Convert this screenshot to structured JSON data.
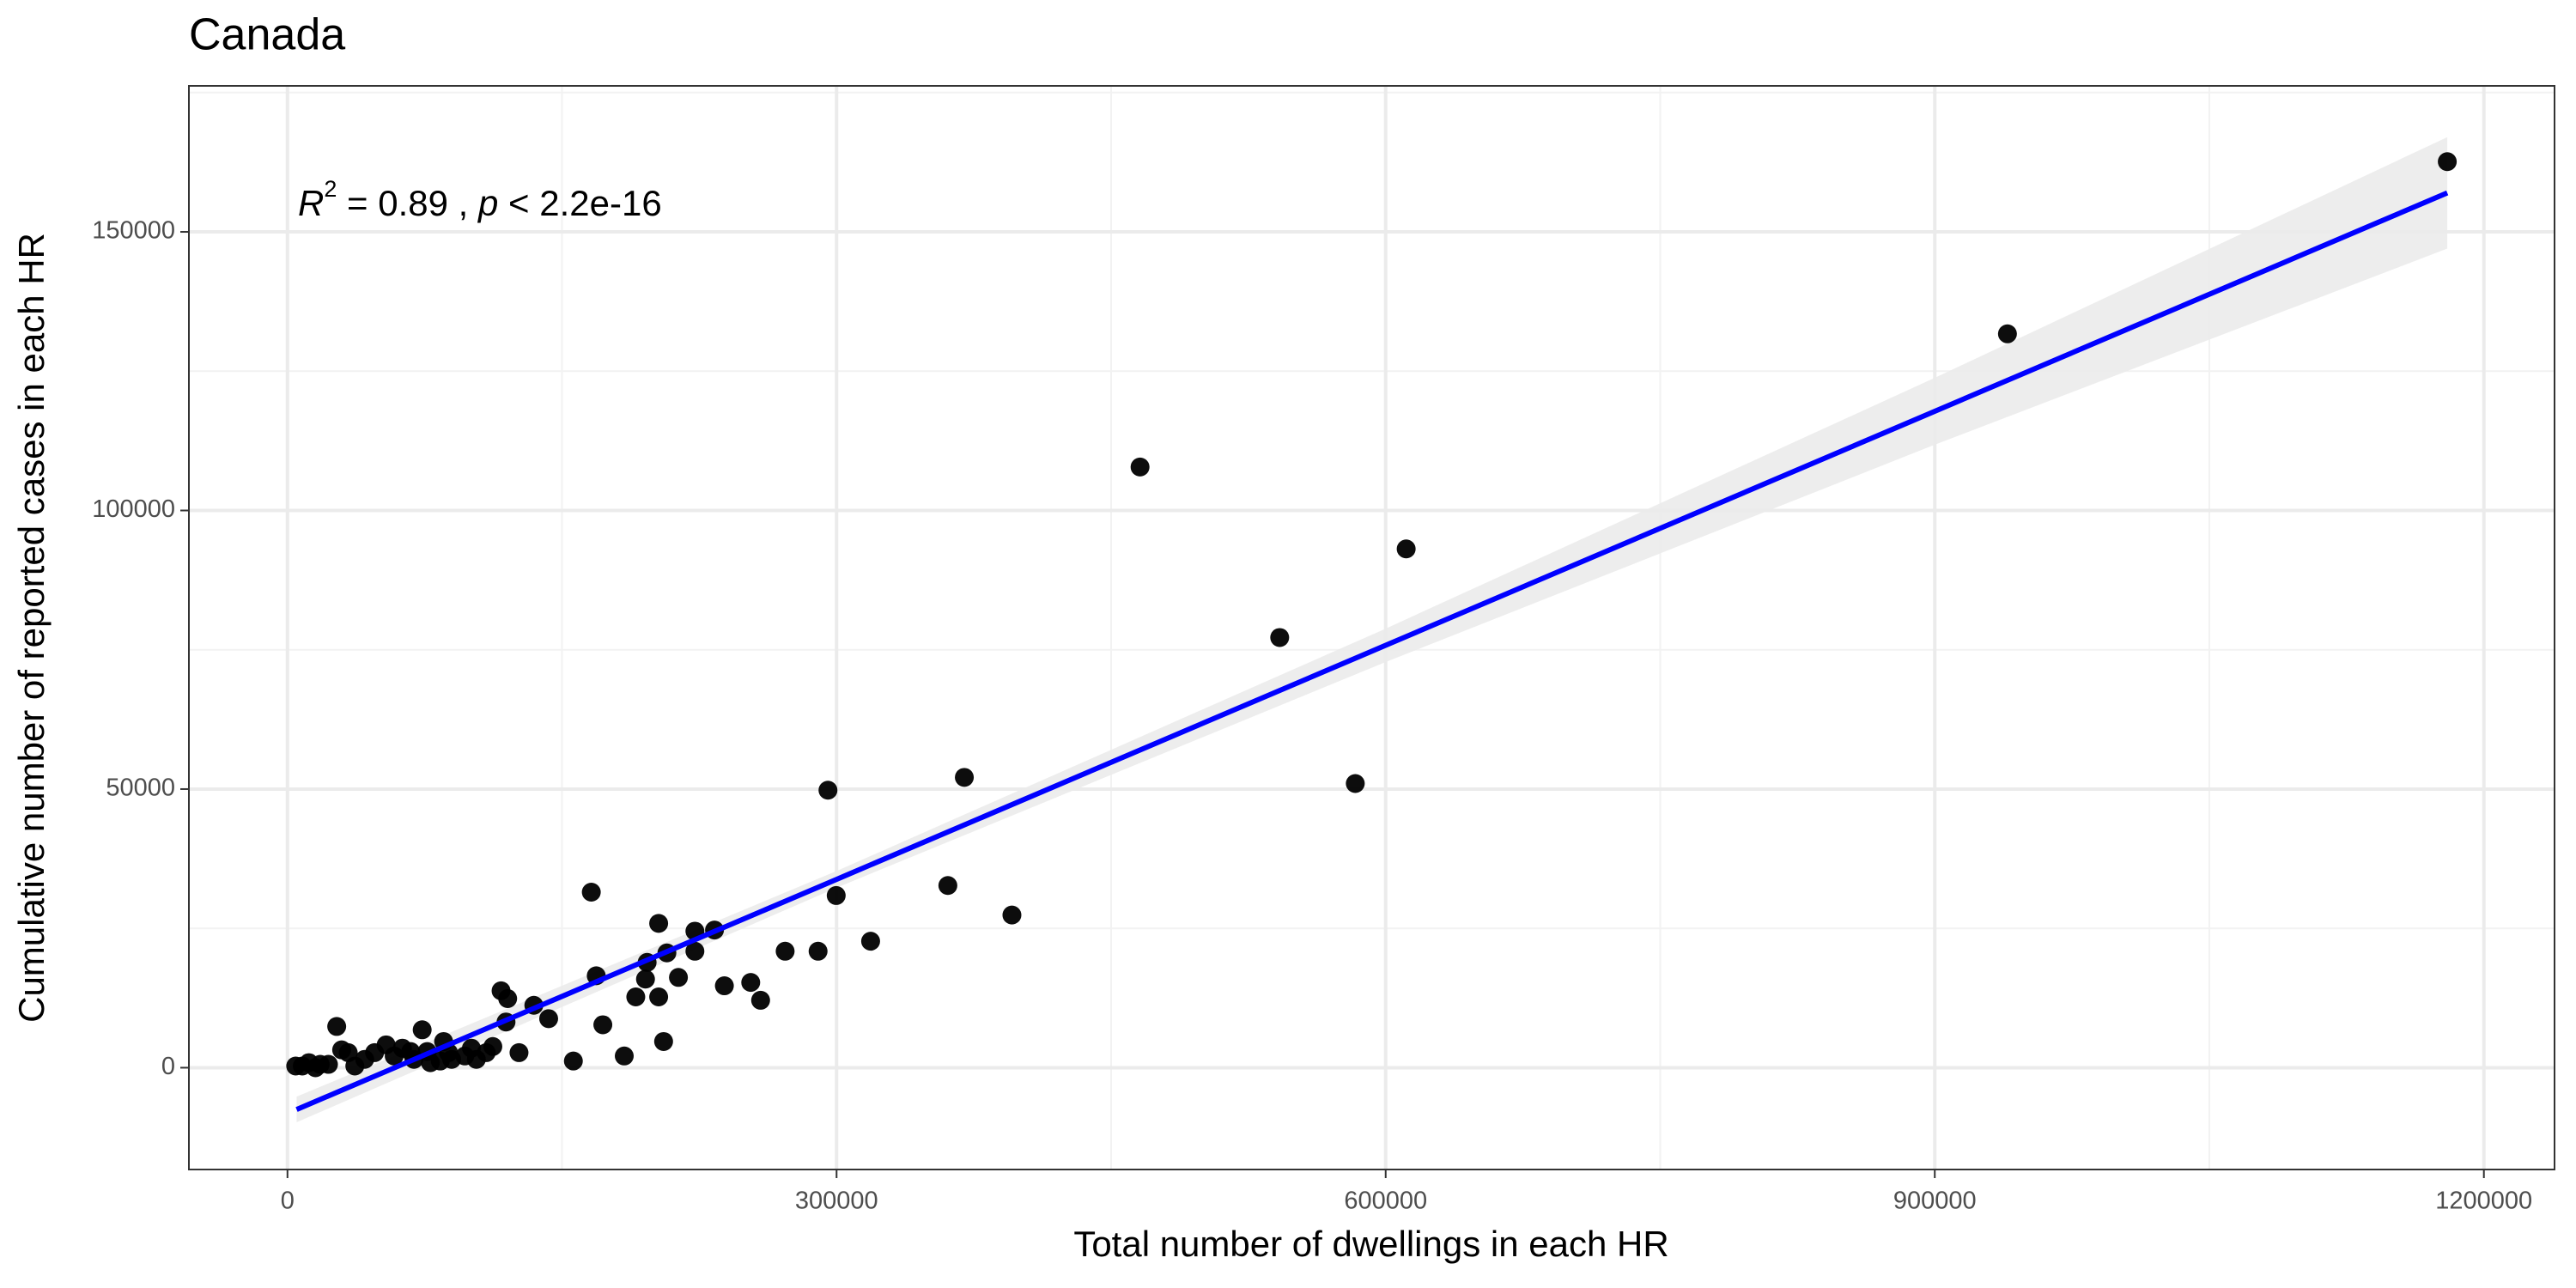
{
  "chart_data": {
    "type": "scatter",
    "title": "Canada",
    "x_label": "Total number of dwellings in each HR",
    "y_label": "Cumulative number of reported cases in each HR",
    "annotation": [
      "R",
      "2",
      " = 0.89 , ",
      "p",
      " < 2.2e-16"
    ],
    "xlim": [
      -53850,
      1238600
    ],
    "ylim": [
      -18270,
      176200
    ],
    "xticks": [
      0,
      300000,
      600000,
      900000,
      1200000
    ],
    "yticks": [
      0,
      50000,
      100000,
      150000
    ],
    "xminor": [
      150000,
      450000,
      750000,
      1050000
    ],
    "yminor": [
      25000,
      75000,
      125000,
      175000
    ],
    "grid": true,
    "color": "#000000",
    "x": [
      1180000,
      939700,
      465800,
      611200,
      542100,
      583400,
      369800,
      295300,
      299800,
      360800,
      395800,
      318600,
      289900,
      271900,
      258500,
      253100,
      238700,
      233300,
      222600,
      222600,
      202800,
      166000,
      207300,
      196500,
      195600,
      213600,
      202800,
      190300,
      168700,
      172300,
      184000,
      205500,
      156200,
      116700,
      120300,
      134600,
      142700,
      126500,
      119400,
      112200,
      108600,
      103200,
      100500,
      96900,
      88000,
      85300,
      76300,
      73600,
      69100,
      62800,
      58300,
      53900,
      47600,
      42200,
      36800,
      33200,
      29600,
      26900,
      22400,
      17900,
      11700,
      4500,
      8100,
      15300,
      78100,
      83500,
      67300,
      89700
    ],
    "y": [
      162600,
      131700,
      107800,
      93100,
      77200,
      51000,
      52100,
      49800,
      30900,
      32700,
      27400,
      22700,
      20900,
      20900,
      12100,
      15300,
      14700,
      24700,
      24500,
      20900,
      25900,
      31500,
      20600,
      18900,
      15900,
      16200,
      12700,
      12700,
      16500,
      7700,
      2100,
      4700,
      1200,
      13800,
      12400,
      11200,
      8800,
      2700,
      8200,
      3800,
      2700,
      1500,
      3500,
      2100,
      2700,
      4700,
      2900,
      6800,
      1500,
      3500,
      2100,
      4100,
      2700,
      1500,
      300,
      2700,
      3200,
      7400,
      600,
      600,
      900,
      300,
      300,
      0,
      900,
      1200,
      2900,
      1500
    ],
    "fit": {
      "color": "#0000ff",
      "band_color": "#ebebeb",
      "x": [
        5000,
        300000,
        600000,
        900000,
        1180000
      ],
      "y": [
        -7500,
        33800,
        75800,
        117800,
        157000
      ],
      "lower": [
        -9800,
        32300,
        72800,
        111800,
        147000
      ],
      "upper": [
        -5200,
        35300,
        78800,
        123800,
        167000
      ]
    }
  }
}
